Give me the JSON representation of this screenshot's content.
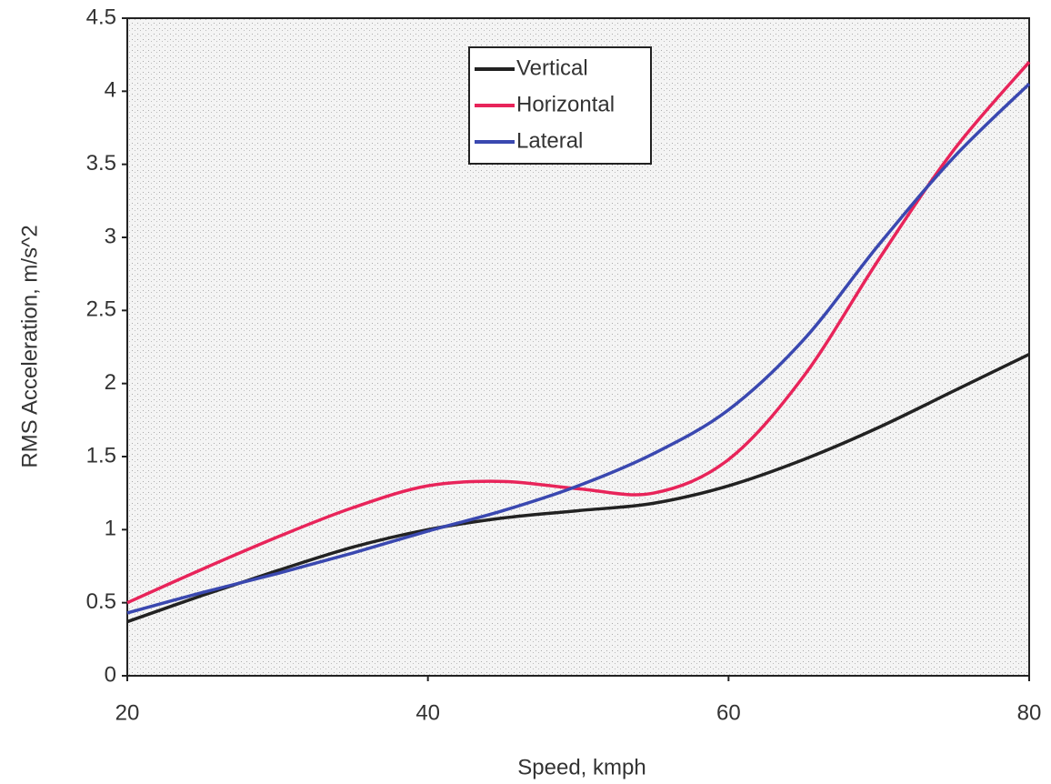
{
  "chart_data": {
    "type": "line",
    "x_label": "Speed, kmph",
    "y_label": "RMS Acceleration, m/s^2",
    "x": [
      20,
      25,
      30,
      35,
      40,
      45,
      50,
      55,
      60,
      65,
      70,
      75,
      80
    ],
    "series": [
      {
        "name": "Vertical",
        "color": "#222222",
        "values": [
          0.37,
          0.55,
          0.72,
          0.88,
          1.0,
          1.08,
          1.13,
          1.18,
          1.3,
          1.48,
          1.7,
          1.95,
          2.2
        ]
      },
      {
        "name": "Horizontal",
        "color": "#e8245a",
        "values": [
          0.5,
          0.73,
          0.95,
          1.15,
          1.3,
          1.33,
          1.28,
          1.25,
          1.48,
          2.05,
          2.85,
          3.6,
          4.2
        ]
      },
      {
        "name": "Lateral",
        "color": "#3a48b0",
        "values": [
          0.43,
          0.57,
          0.7,
          0.84,
          0.99,
          1.13,
          1.3,
          1.52,
          1.82,
          2.3,
          2.95,
          3.55,
          4.05
        ]
      }
    ],
    "xlim": [
      20,
      80
    ],
    "xticks": [
      20,
      40,
      60,
      80
    ],
    "ylim": [
      0,
      4.5
    ],
    "yticks": [
      0,
      0.5,
      1,
      1.5,
      2,
      2.5,
      3,
      3.5,
      4,
      4.5
    ],
    "grid": false,
    "legend": "top"
  }
}
